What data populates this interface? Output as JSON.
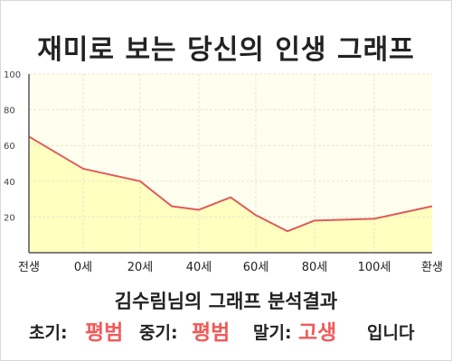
{
  "title": "재미로 보는 당신의 인생 그래프",
  "chart_data": {
    "type": "area",
    "x_categories": [
      "전생",
      "0세",
      "20세",
      "40세",
      "60세",
      "80세",
      "100세",
      "환생"
    ],
    "ylim": [
      0,
      100
    ],
    "yticks": [
      20,
      40,
      60,
      80,
      100
    ],
    "grid": true,
    "points": [
      {
        "x": "전생",
        "y": 65
      },
      {
        "x": "0세",
        "y": 47
      },
      {
        "x": "20세",
        "y": 40
      },
      {
        "x": "30세",
        "y": 26
      },
      {
        "x": "40세",
        "y": 24
      },
      {
        "x": "50세",
        "y": 31
      },
      {
        "x": "60세",
        "y": 21
      },
      {
        "x": "70세",
        "y": 12
      },
      {
        "x": "80세",
        "y": 18
      },
      {
        "x": "100세",
        "y": 19
      },
      {
        "x": "환생",
        "y": 26
      }
    ],
    "colors": {
      "line": "#e05a5a",
      "fill": "#ffffc0",
      "plot_bg": "#fffff0",
      "grid": "#e6e6cc",
      "axis": "#555555"
    }
  },
  "subtitle": "김수림님의 그래프 분석결과",
  "result": {
    "early_label": "초기:",
    "early_value": "평범",
    "mid_label": "중기:",
    "mid_value": "평범",
    "late_label": "말기:",
    "late_value": "고생",
    "ending": "입니다"
  }
}
